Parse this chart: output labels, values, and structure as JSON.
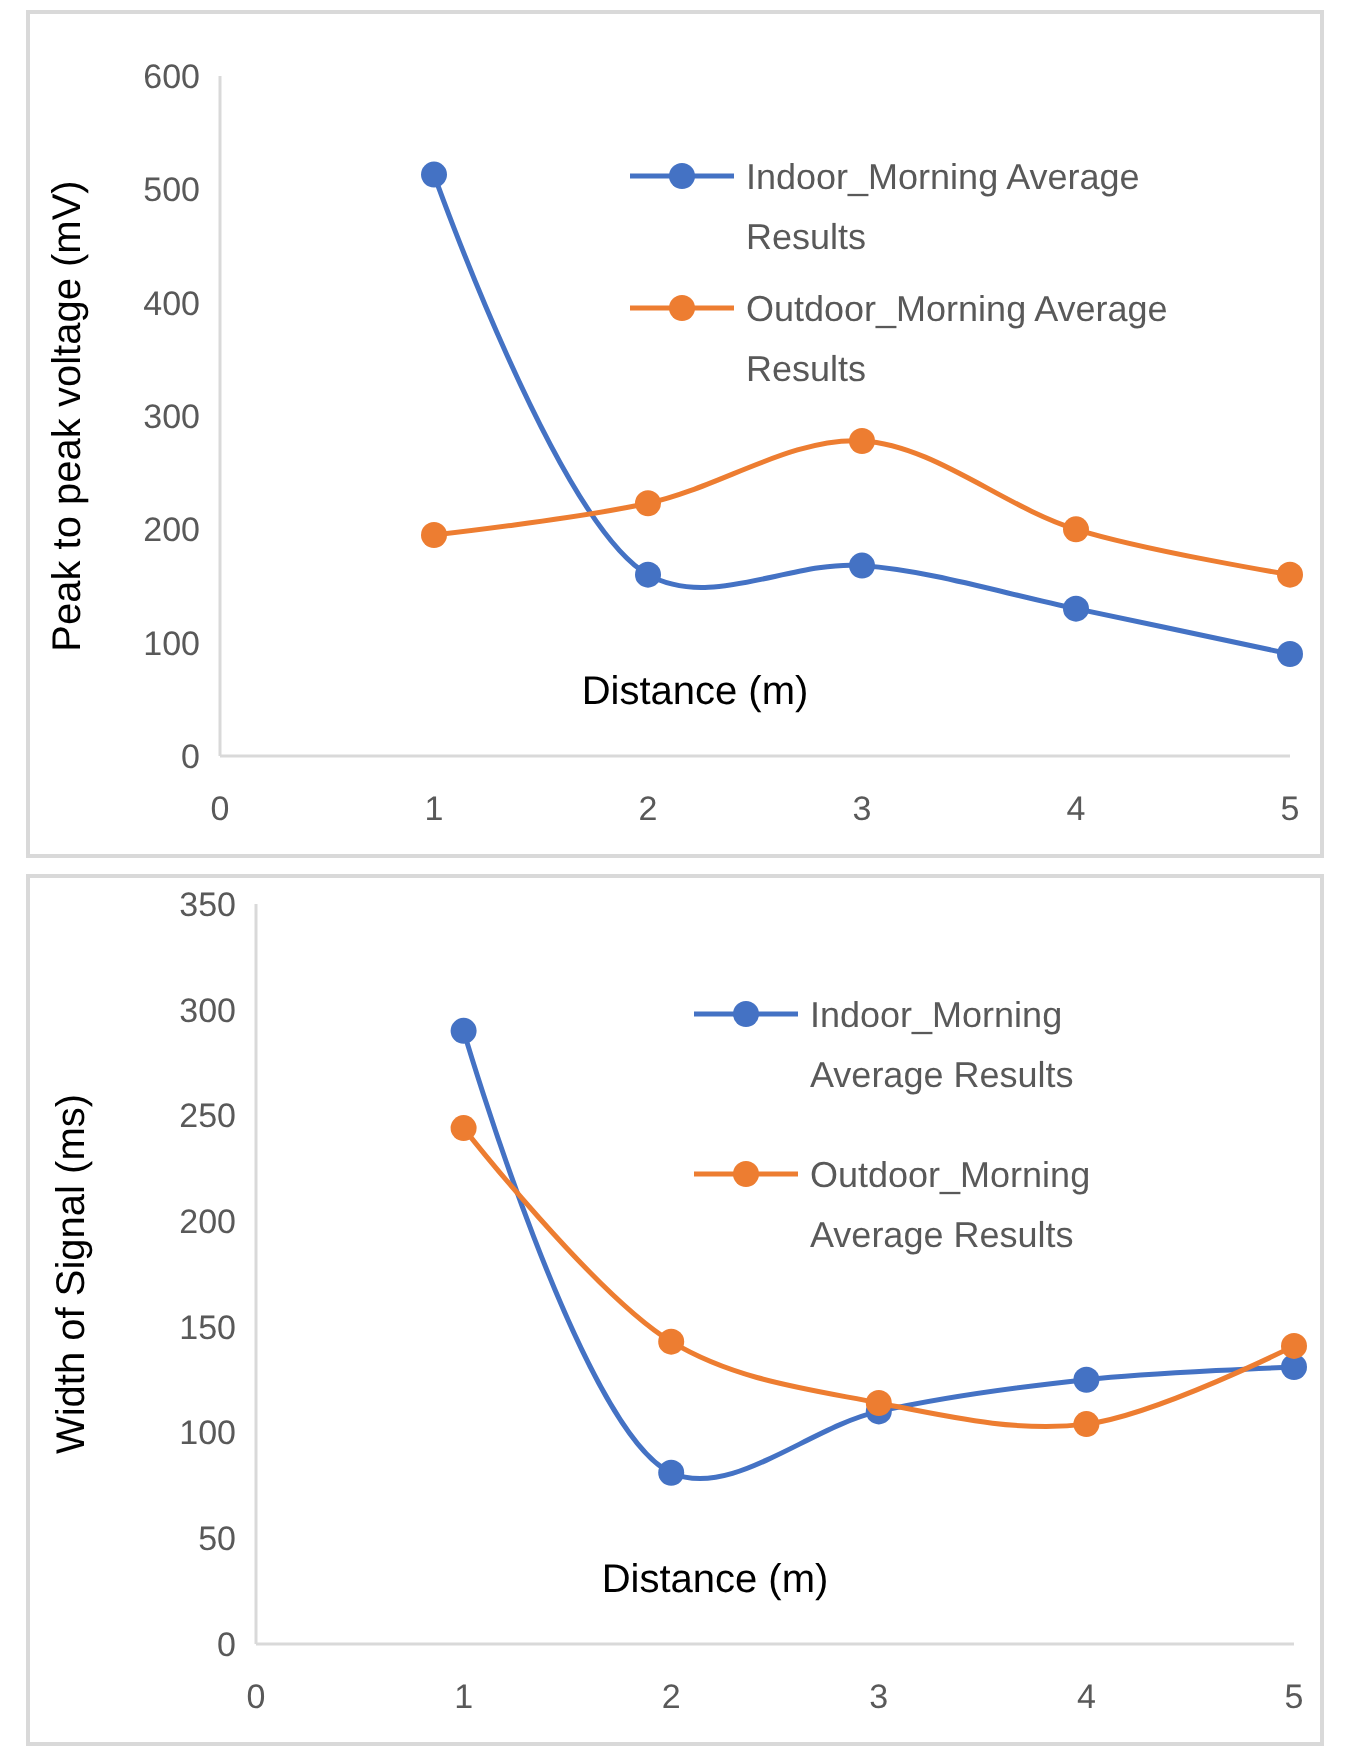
{
  "chart_data": [
    {
      "type": "line",
      "ylabel": "Peak to peak voltage (mV)",
      "xlabel": "Distance (m)",
      "x": [
        1,
        2,
        3,
        4,
        5
      ],
      "xlim": [
        0,
        5
      ],
      "xticks": [
        0,
        1,
        2,
        3,
        4,
        5
      ],
      "ylim": [
        0,
        600
      ],
      "yticks": [
        0,
        100,
        200,
        300,
        400,
        500,
        600
      ],
      "marker": "circle",
      "legend": "top right",
      "series": [
        {
          "name": "Indoor_Morning Average Results",
          "color": "#4472c4",
          "values": [
            513,
            160,
            168,
            130,
            90
          ]
        },
        {
          "name": "Outdoor_Morning Average Results",
          "color": "#ed7d31",
          "values": [
            195,
            223,
            278,
            200,
            160
          ]
        }
      ]
    },
    {
      "type": "line",
      "ylabel": "Width of Signal (ms)",
      "xlabel": "Distance (m)",
      "x": [
        1,
        2,
        3,
        4,
        5
      ],
      "xlim": [
        0,
        5
      ],
      "xticks": [
        0,
        1,
        2,
        3,
        4,
        5
      ],
      "ylim": [
        0,
        350
      ],
      "yticks": [
        0,
        50,
        100,
        150,
        200,
        250,
        300,
        350
      ],
      "marker": "circle",
      "legend": "top right",
      "series": [
        {
          "name": "Indoor_Morning Average Results",
          "color": "#4472c4",
          "values": [
            290,
            81,
            110,
            125,
            131
          ]
        },
        {
          "name": "Outdoor_Morning Average Results",
          "color": "#ed7d31",
          "values": [
            244,
            143,
            114,
            104,
            141
          ]
        }
      ]
    }
  ]
}
